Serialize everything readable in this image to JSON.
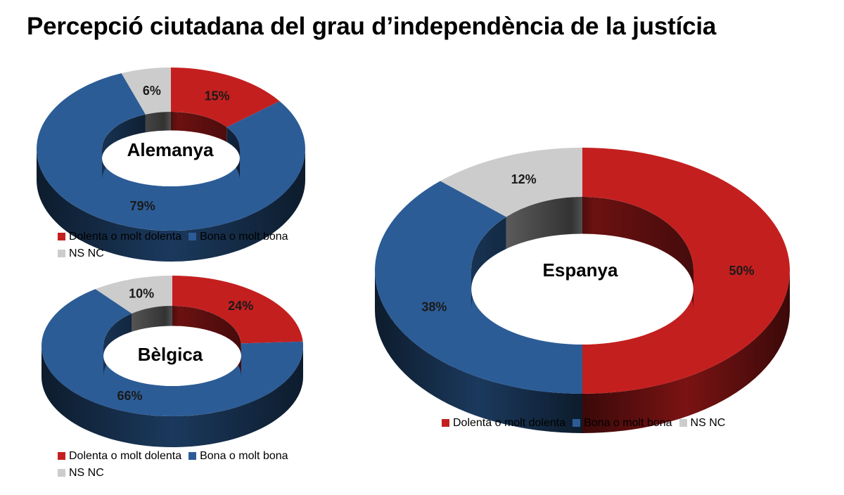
{
  "page": {
    "title": "Percepció ciutadana del grau d’independència de la justícia"
  },
  "colors": {
    "dolenta": "#c41f1f",
    "bona": "#2c5c96",
    "nsnc": "#cccccc"
  },
  "chart_data": [
    {
      "type": "pie",
      "variant": "3d-donut",
      "title": "Alemanya",
      "categories": [
        "Dolenta o molt dolenta",
        "Bona o molt bona",
        "NS NC"
      ],
      "values": [
        15,
        79,
        6
      ],
      "value_labels": [
        "15%",
        "79%",
        "6%"
      ],
      "legend": [
        "Dolenta o molt dolenta",
        "Bona o molt bona",
        "NS NC"
      ],
      "legend_position": "bottom"
    },
    {
      "type": "pie",
      "variant": "3d-donut",
      "title": "Bèlgica",
      "categories": [
        "Dolenta o molt dolenta",
        "Bona o molt bona",
        "NS NC"
      ],
      "values": [
        24,
        66,
        10
      ],
      "value_labels": [
        "24%",
        "66%",
        "10%"
      ],
      "legend": [
        "Dolenta o molt dolenta",
        "Bona o molt bona",
        "NS NC"
      ],
      "legend_position": "bottom"
    },
    {
      "type": "pie",
      "variant": "3d-donut",
      "title": "Espanya",
      "categories": [
        "Dolenta o molt dolenta",
        "Bona o molt bona",
        "NS NC"
      ],
      "values": [
        50,
        38,
        12
      ],
      "value_labels": [
        "50%",
        "38%",
        "12%"
      ],
      "legend": [
        "Dolenta o molt dolenta",
        "Bona o molt bona",
        "NS NC"
      ],
      "legend_position": "bottom"
    }
  ]
}
